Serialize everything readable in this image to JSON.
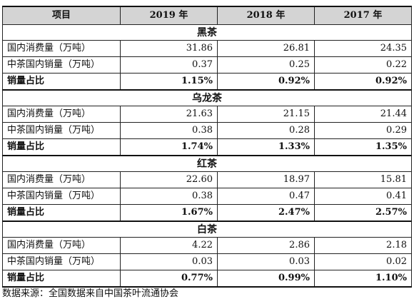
{
  "table": {
    "header": {
      "item": "项目",
      "y2019": "2019 年",
      "y2018": "2018 年",
      "y2017": "2017 年"
    },
    "sections": [
      {
        "name": "黑茶",
        "rows": [
          {
            "label": "国内消费量（万吨）",
            "v2019": "31.86",
            "v2018": "26.81",
            "v2017": "24.35"
          },
          {
            "label": "中茶国内销量（万吨）",
            "v2019": "0.37",
            "v2018": "0.25",
            "v2017": "0.22"
          },
          {
            "label": "销量占比",
            "v2019": "1.15%",
            "v2018": "0.92%",
            "v2017": "0.92%"
          }
        ]
      },
      {
        "name": "乌龙茶",
        "rows": [
          {
            "label": "国内消费量（万吨）",
            "v2019": "21.63",
            "v2018": "21.15",
            "v2017": "21.44"
          },
          {
            "label": "中茶国内销量（万吨）",
            "v2019": "0.38",
            "v2018": "0.28",
            "v2017": "0.29"
          },
          {
            "label": "销量占比",
            "v2019": "1.74%",
            "v2018": "1.33%",
            "v2017": "1.35%"
          }
        ]
      },
      {
        "name": "红茶",
        "rows": [
          {
            "label": "国内消费量（万吨）",
            "v2019": "22.60",
            "v2018": "18.97",
            "v2017": "15.81"
          },
          {
            "label": "中茶国内销量（万吨）",
            "v2019": "0.38",
            "v2018": "0.47",
            "v2017": "0.41"
          },
          {
            "label": "销量占比",
            "v2019": "1.67%",
            "v2018": "2.47%",
            "v2017": "2.57%"
          }
        ]
      },
      {
        "name": "白茶",
        "rows": [
          {
            "label": "国内消费量（万吨）",
            "v2019": "4.22",
            "v2018": "2.86",
            "v2017": "2.18"
          },
          {
            "label": "中茶国内销量（万吨）",
            "v2019": "0.03",
            "v2018": "0.03",
            "v2017": "0.02"
          },
          {
            "label": "销量占比",
            "v2019": "0.77%",
            "v2018": "0.99%",
            "v2017": "1.10%"
          }
        ]
      }
    ]
  },
  "source_note": "数据来源：全国数据来自中国茶叶流通协会"
}
